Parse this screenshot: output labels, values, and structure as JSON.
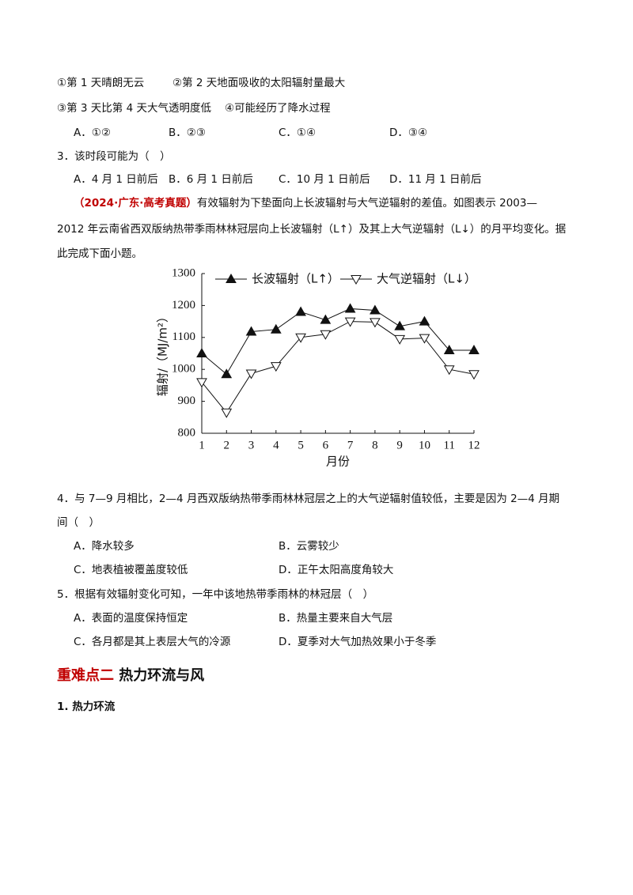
{
  "document": {
    "q2_statements": [
      "①第 1 天晴朗无云",
      "②第 2 天地面吸收的太阳辐射量最大",
      "③第 3 天比第 4 天大气透明度低",
      "④可能经历了降水过程"
    ],
    "q2_options": [
      "A．①②",
      "B．②③",
      "C．①④",
      "D．③④"
    ],
    "q3_stem": "3．该时段可能为（　）",
    "q3_options": [
      "A．4 月 1 日前后",
      "B．6 月 1 日前后",
      "C．10 月 1 日前后",
      "D．11 月 1 日前后"
    ],
    "source": "（2024·广东·高考真题）",
    "intro_lines": [
      "有效辐射为下垫面向上长波辐射与大气逆辐射的差值。如图表示 2003—",
      "2012 年云南省西双版纳热带季雨林林冠层向上长波辐射（L↑）及其上大气逆辐射（L↓）的月平均变化。据",
      "此完成下面小题。"
    ],
    "q4_lines": [
      "4．与 7—9 月相比，2—4 月西双版纳热带季雨林林冠层之上的大气逆辐射值较低，主要是因为 2—4 月期",
      "间（　）"
    ],
    "q4_options": [
      "A．降水较多",
      "B．云雾较少",
      "C．地表植被覆盖度较低",
      "D．正午太阳高度角较大"
    ],
    "q5_stem": "5．根据有效辐射变化可知，一年中该地热带季雨林的林冠层（　）",
    "q5_options": [
      "A．表面的温度保持恒定",
      "B．热量主要来自大气层",
      "C．各月都是其上表层大气的冷源",
      "D．夏季对大气加热效果小于冬季"
    ],
    "section_tag": "重难点二",
    "section_title": "热力环流与风",
    "subsection": "1. 热力环流"
  },
  "chart_data": {
    "type": "line",
    "x_label": "月份",
    "y_label": "辐射/（MJ/m²）",
    "x": [
      1,
      2,
      3,
      4,
      5,
      6,
      7,
      8,
      9,
      10,
      11,
      12
    ],
    "xlim": [
      1,
      12
    ],
    "xticks": [
      1,
      2,
      3,
      4,
      5,
      6,
      7,
      8,
      9,
      10,
      11,
      12
    ],
    "ylim": [
      800,
      1300
    ],
    "yticks": [
      800,
      900,
      1000,
      1100,
      1200,
      1300
    ],
    "legend": "top",
    "series": [
      {
        "name": "长波辐射（L↑）",
        "color": "#111111",
        "marker": "triangle-filled",
        "values": [
          1050,
          985,
          1118,
          1125,
          1180,
          1155,
          1190,
          1185,
          1135,
          1150,
          1060,
          1060
        ]
      },
      {
        "name": "大气逆辐射（L↓）",
        "color": "#111111",
        "marker": "triangle-down-open",
        "values": [
          960,
          865,
          987,
          1010,
          1100,
          1110,
          1150,
          1148,
          1095,
          1098,
          1000,
          985
        ]
      }
    ]
  }
}
